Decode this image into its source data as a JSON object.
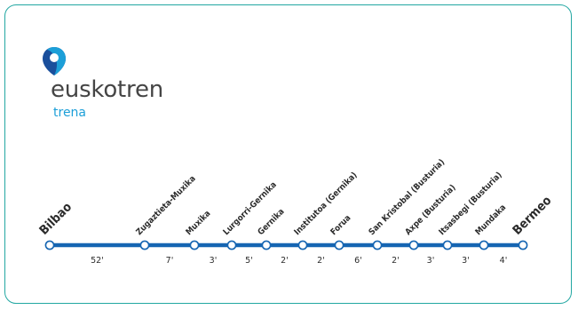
{
  "brand": {
    "name": "euskotren",
    "sub": "trena",
    "primary_color": "#1c9fd8",
    "dark_blue": "#1a4f9c",
    "border_color": "#22a7a2"
  },
  "line": {
    "color": "#1565b2",
    "stations": [
      {
        "name": "Bilbao",
        "terminal": true
      },
      {
        "name": "Zugaztieta-Muxika"
      },
      {
        "name": "Muxika"
      },
      {
        "name": "Lurgorri-Gernika"
      },
      {
        "name": "Gernika"
      },
      {
        "name": "Institutoa (Gernika)"
      },
      {
        "name": "Forua"
      },
      {
        "name": "San Kristobal (Busturia)"
      },
      {
        "name": "Axpe (Busturia)"
      },
      {
        "name": "Itsasbegi (Busturia)"
      },
      {
        "name": "Mundaka"
      },
      {
        "name": "Bermeo",
        "terminal": true
      }
    ],
    "travel_times": [
      "52'",
      "7'",
      "3'",
      "5'",
      "2'",
      "2'",
      "6'",
      "2'",
      "3'",
      "3'",
      "4'"
    ]
  }
}
